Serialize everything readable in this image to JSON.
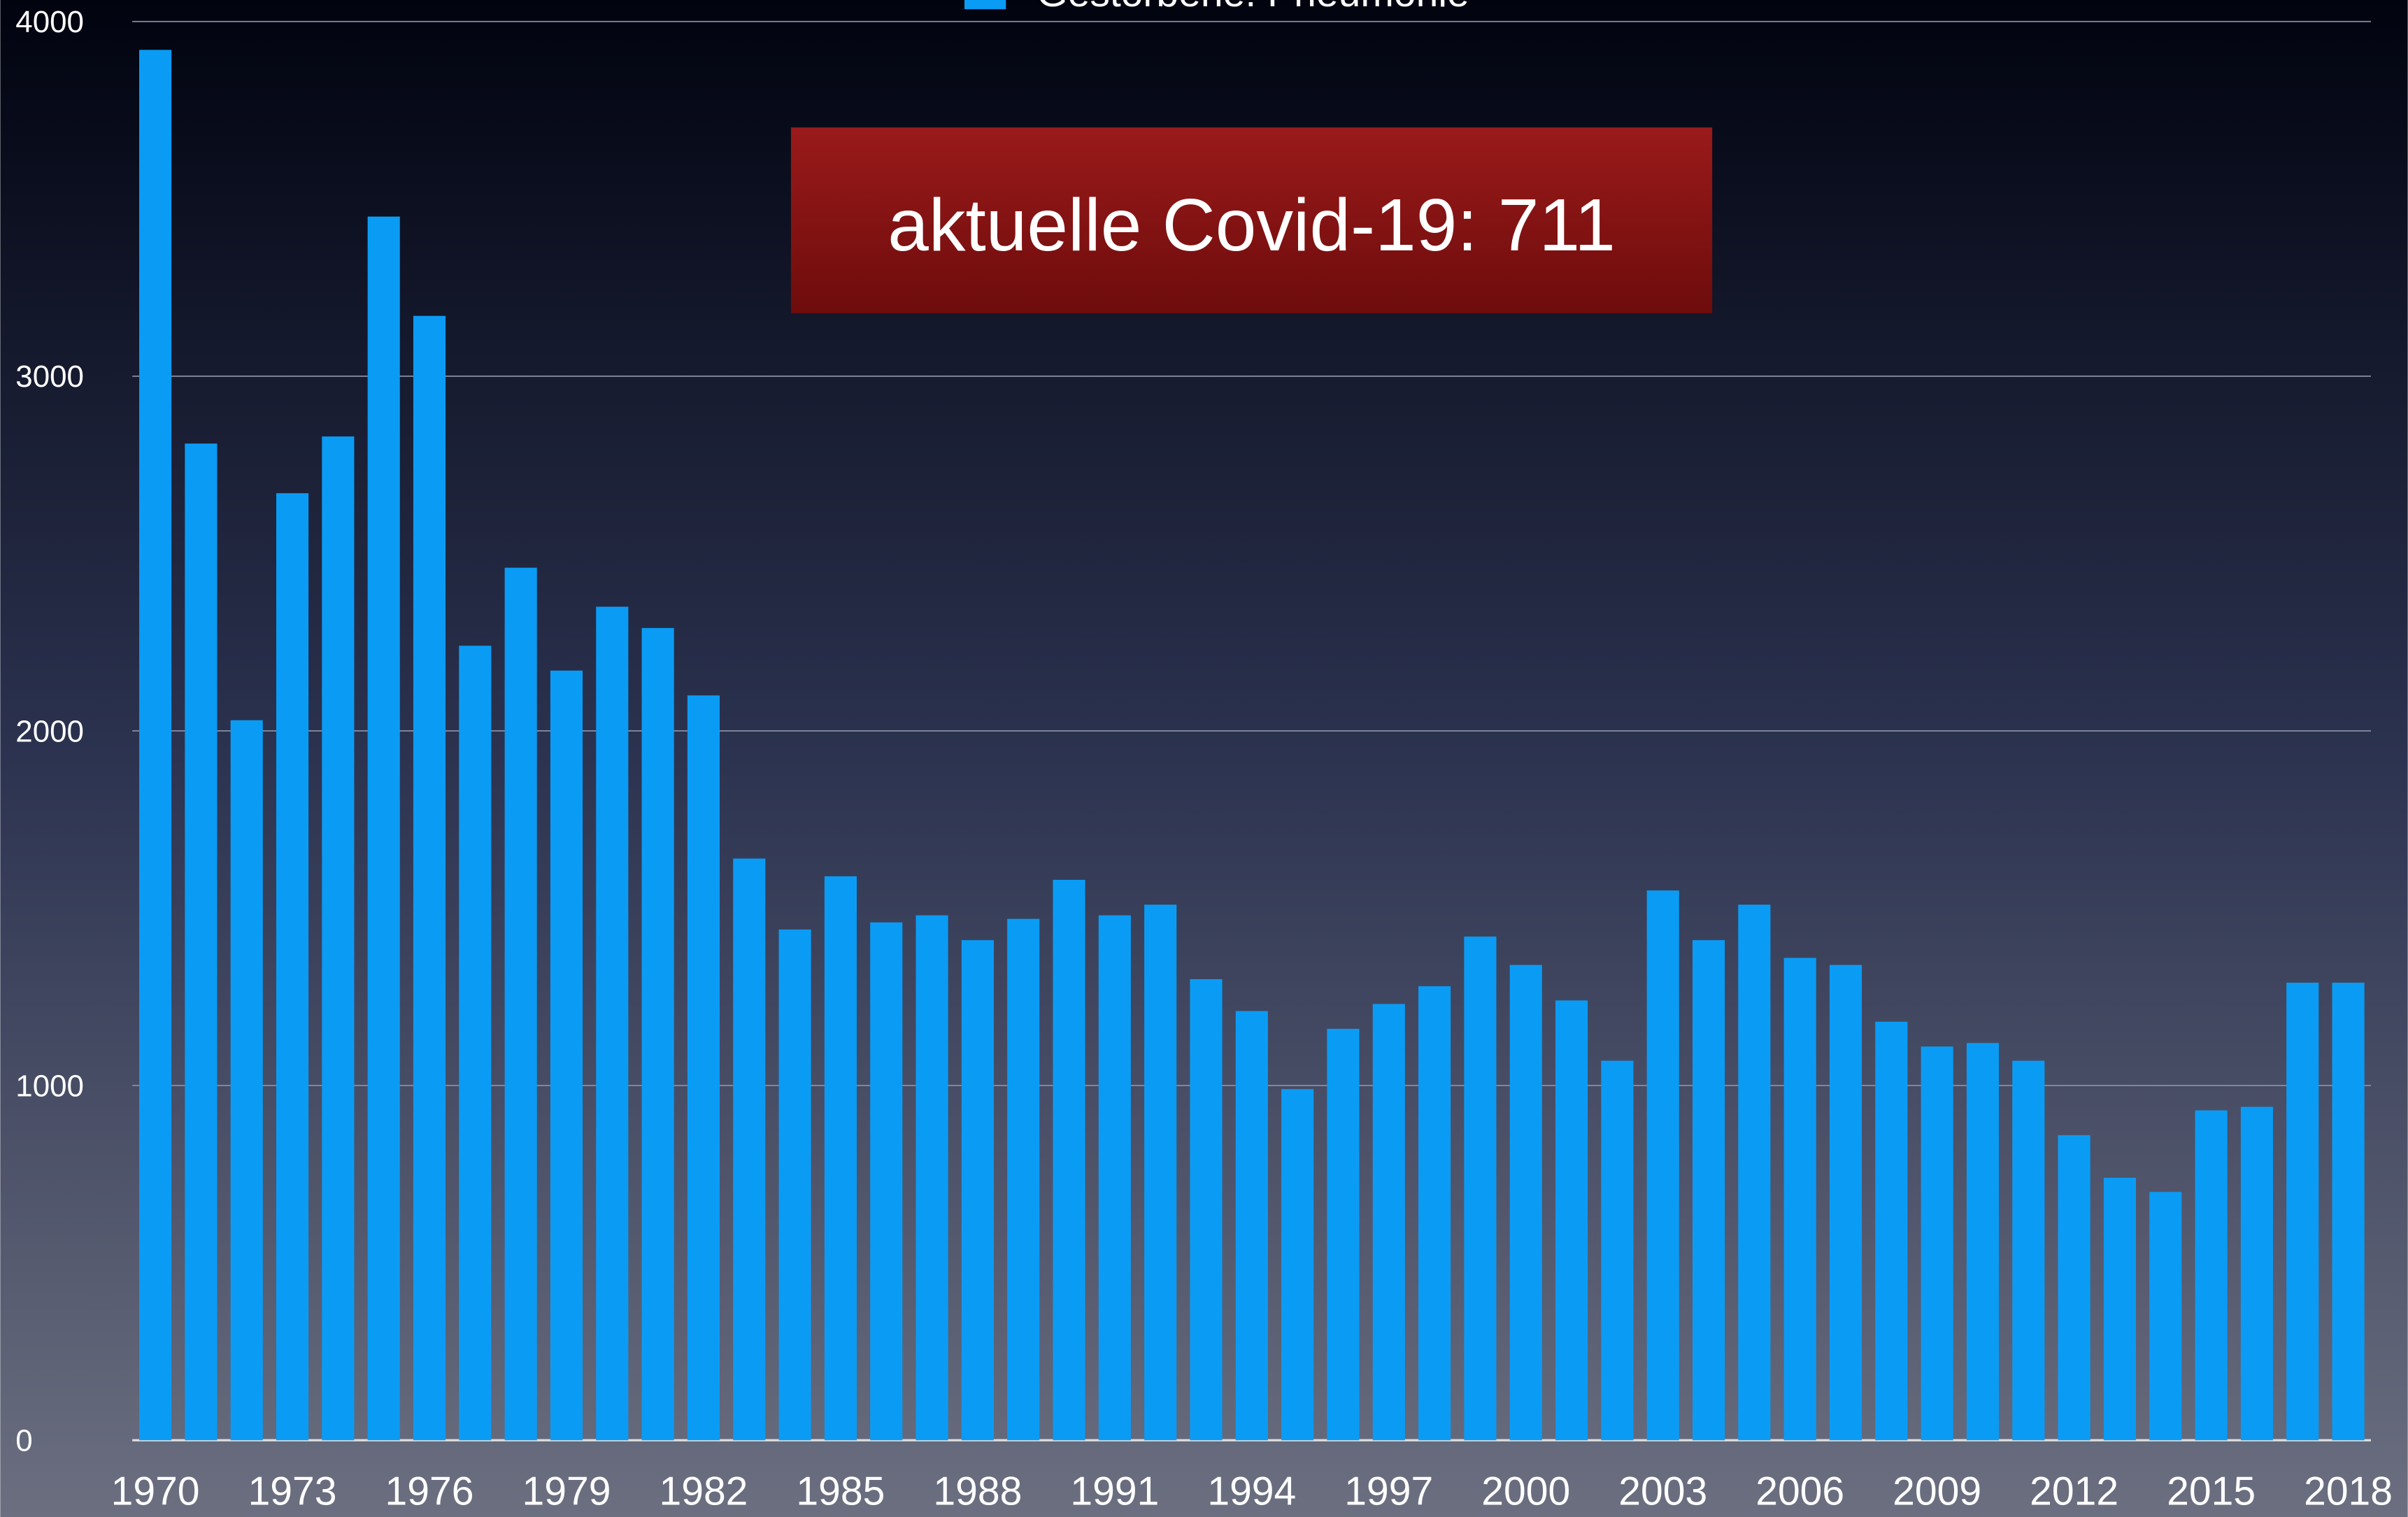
{
  "chart_data": {
    "type": "bar",
    "series": [
      {
        "name": "Gestorbene: Pneumonie",
        "color": "#0a9cf5",
        "values": [
          3920,
          2810,
          2030,
          2670,
          2830,
          3450,
          3170,
          2240,
          2460,
          2170,
          2350,
          2290,
          2100,
          1640,
          1440,
          1590,
          1460,
          1480,
          1410,
          1470,
          1580,
          1480,
          1510,
          1300,
          1210,
          990,
          1160,
          1230,
          1280,
          1420,
          1340,
          1240,
          1070,
          1550,
          1410,
          1510,
          1360,
          1340,
          1180,
          1110,
          1120,
          1070,
          860,
          740,
          700,
          930,
          940,
          1290,
          1290
        ]
      }
    ],
    "categories": [
      "1970",
      null,
      null,
      "1973",
      null,
      null,
      "1976",
      null,
      null,
      "1979",
      null,
      null,
      "1982",
      null,
      null,
      "1985",
      null,
      null,
      "1988",
      null,
      null,
      "1991",
      null,
      null,
      "1994",
      null,
      null,
      "1997",
      null,
      null,
      "2000",
      null,
      null,
      "2003",
      null,
      null,
      "2006",
      null,
      null,
      "2009",
      null,
      null,
      "2012",
      null,
      null,
      "2015",
      null,
      null,
      "2018"
    ],
    "ylim": [
      0,
      4000
    ],
    "yticks": [
      0,
      1000,
      2000,
      3000,
      4000
    ],
    "grid": true,
    "legend": "top",
    "annotation": "aktuelle Covid-19: 711"
  }
}
